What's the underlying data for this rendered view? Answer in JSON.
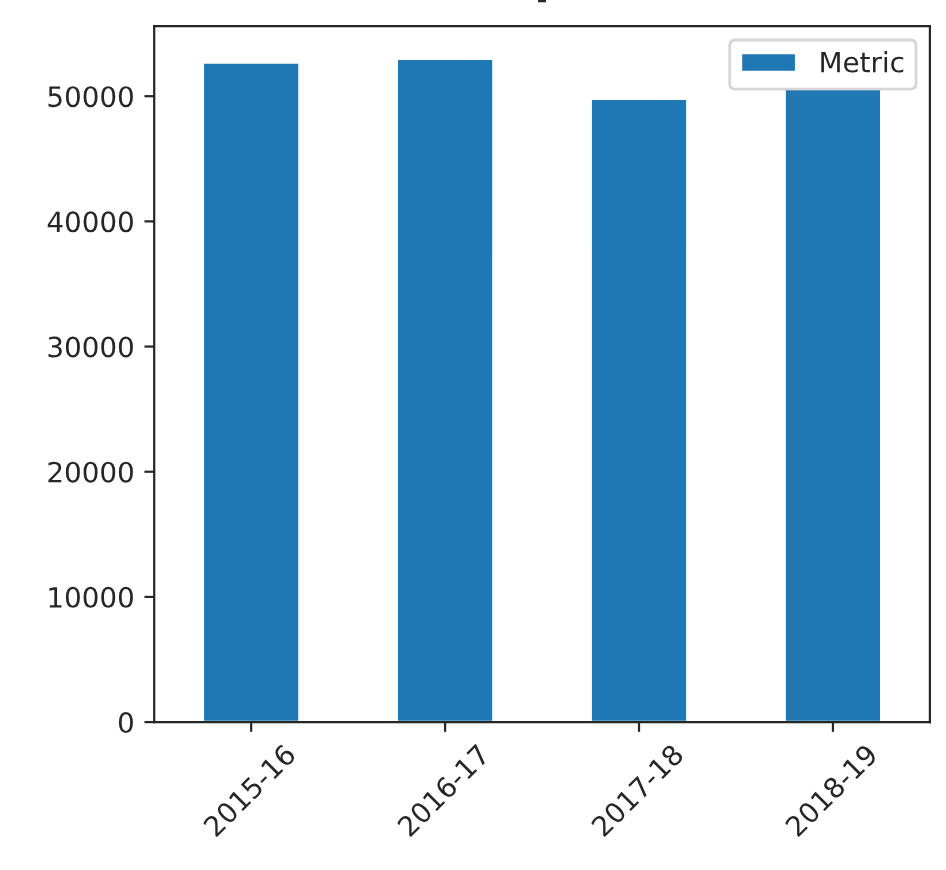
{
  "chart_data": {
    "type": "bar",
    "title": "-",
    "categories": [
      "2015-16",
      "2016-17",
      "2017-18",
      "2018-19"
    ],
    "series": [
      {
        "name": "Metric",
        "color": "#1f77b4",
        "values": [
          52700,
          53000,
          49800,
          50600
        ]
      }
    ],
    "ylim": [
      0,
      55600
    ],
    "yticks": [
      0,
      10000,
      20000,
      30000,
      40000,
      50000
    ],
    "grid": false,
    "legend": "top right"
  }
}
